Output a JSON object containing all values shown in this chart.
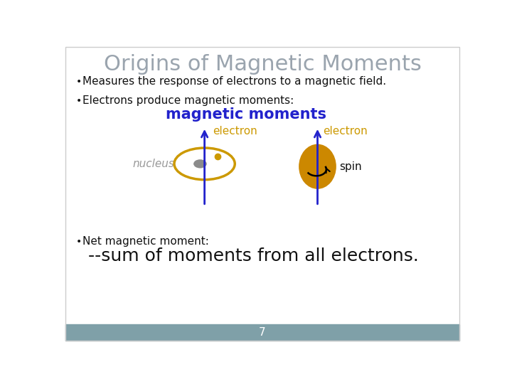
{
  "title": "Origins of Magnetic Moments",
  "title_color": "#9aa4ae",
  "title_fontsize": 22,
  "bg_color": "#ffffff",
  "footer_color": "#7fa0a8",
  "footer_text": "7",
  "bullet1": "Measures the response of electrons to a magnetic field.",
  "bullet2": "Electrons produce magnetic moments:",
  "bullet3": "Net magnetic moment:",
  "bullet4": "--sum of moments from all electrons.",
  "label_magnetic_moments": "magnetic moments",
  "label_electron_left": "electron",
  "label_electron_right": "electron",
  "label_nucleus": "nucleus",
  "label_spin": "spin",
  "blue_color": "#2222cc",
  "gold_color": "#cc9900",
  "gold_fill": "#cc8800",
  "nucleus_color": "#777777",
  "text_color": "#111111",
  "gray_text_color": "#999999",
  "bullet_fontsize": 11,
  "bullet4_fontsize": 18,
  "magnetic_moments_fontsize": 15,
  "label_fontsize": 11,
  "border_color": "#cccccc"
}
